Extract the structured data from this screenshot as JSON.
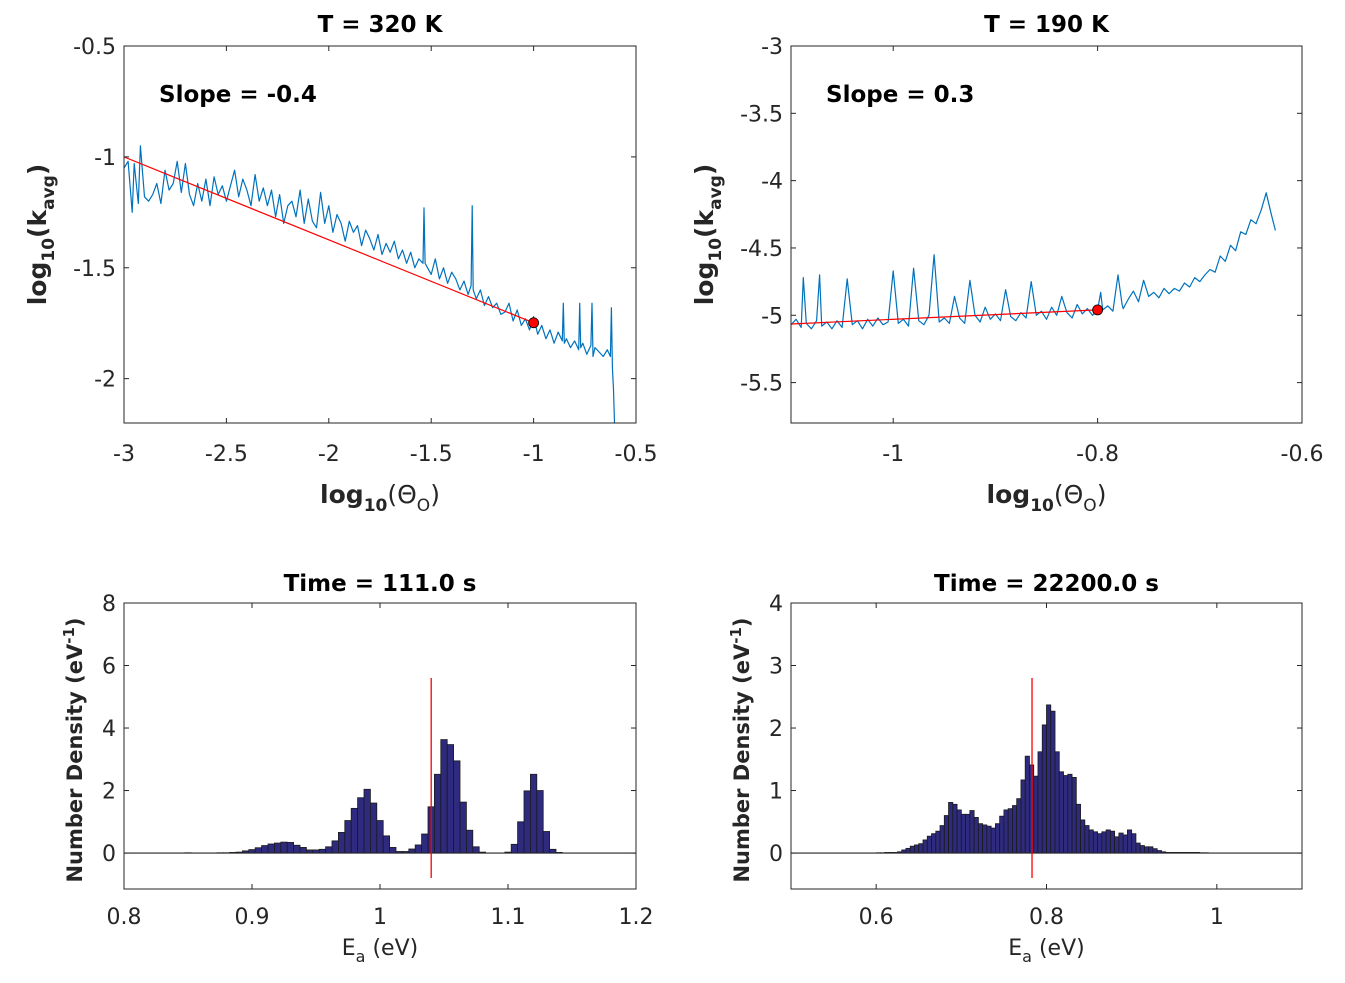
{
  "chart_data": [
    {
      "id": "top-left",
      "type": "line",
      "title": "T = 320 K",
      "xlabel": {
        "base": "log",
        "sub": "10",
        "open": "(",
        "sym": "Θ",
        "symsub": "O",
        "close": ")"
      },
      "ylabel": {
        "base": "log",
        "sub": "10",
        "open": "(k",
        "sym": "",
        "symsub": "avg",
        "close": ")"
      },
      "xlim": [
        -3,
        -0.5
      ],
      "ylim": [
        -2.2,
        -0.5
      ],
      "xticks": [
        -3,
        -2.5,
        -2,
        -1.5,
        -1,
        -0.5
      ],
      "xtick_labels": [
        "-3",
        "-2.5",
        "-2",
        "-1.5",
        "-1",
        "-0.5"
      ],
      "yticks": [
        -2,
        -1.5,
        -1,
        -0.5
      ],
      "ytick_labels": [
        "-2",
        "-1.5",
        "-1",
        "-0.5"
      ],
      "annotation": "Slope = -0.4",
      "annotation_pos": "top-left",
      "grid": false,
      "series": [
        {
          "name": "data",
          "color": "#0072BD",
          "x": [
            -3.0,
            -2.98,
            -2.96,
            -2.95,
            -2.93,
            -2.92,
            -2.9,
            -2.88,
            -2.86,
            -2.84,
            -2.82,
            -2.8,
            -2.78,
            -2.76,
            -2.74,
            -2.72,
            -2.7,
            -2.68,
            -2.66,
            -2.64,
            -2.62,
            -2.6,
            -2.58,
            -2.56,
            -2.54,
            -2.52,
            -2.5,
            -2.48,
            -2.46,
            -2.44,
            -2.42,
            -2.4,
            -2.38,
            -2.36,
            -2.34,
            -2.32,
            -2.3,
            -2.28,
            -2.26,
            -2.24,
            -2.22,
            -2.2,
            -2.18,
            -2.16,
            -2.14,
            -2.12,
            -2.1,
            -2.08,
            -2.06,
            -2.04,
            -2.02,
            -2.0,
            -1.98,
            -1.96,
            -1.94,
            -1.92,
            -1.9,
            -1.88,
            -1.86,
            -1.84,
            -1.82,
            -1.8,
            -1.78,
            -1.76,
            -1.74,
            -1.72,
            -1.7,
            -1.68,
            -1.66,
            -1.64,
            -1.62,
            -1.6,
            -1.58,
            -1.56,
            -1.54,
            -1.535,
            -1.53,
            -1.5,
            -1.48,
            -1.46,
            -1.44,
            -1.42,
            -1.4,
            -1.38,
            -1.36,
            -1.34,
            -1.32,
            -1.305,
            -1.3,
            -1.295,
            -1.28,
            -1.26,
            -1.24,
            -1.22,
            -1.2,
            -1.18,
            -1.16,
            -1.14,
            -1.12,
            -1.1,
            -1.08,
            -1.06,
            -1.04,
            -1.02,
            -1.0,
            -0.98,
            -0.96,
            -0.94,
            -0.92,
            -0.9,
            -0.88,
            -0.86,
            -0.855,
            -0.85,
            -0.84,
            -0.82,
            -0.8,
            -0.78,
            -0.775,
            -0.77,
            -0.76,
            -0.74,
            -0.72,
            -0.715,
            -0.71,
            -0.7,
            -0.68,
            -0.66,
            -0.64,
            -0.625,
            -0.62,
            -0.615,
            -0.61,
            -0.605
          ],
          "y": [
            -1.05,
            -1.02,
            -1.25,
            -1.03,
            -1.21,
            -0.95,
            -1.18,
            -1.2,
            -1.17,
            -1.12,
            -1.21,
            -1.06,
            -1.15,
            -1.12,
            -1.02,
            -1.16,
            -1.03,
            -1.17,
            -1.22,
            -1.12,
            -1.2,
            -1.1,
            -1.22,
            -1.09,
            -1.17,
            -1.13,
            -1.2,
            -1.13,
            -1.06,
            -1.18,
            -1.1,
            -1.15,
            -1.22,
            -1.08,
            -1.2,
            -1.14,
            -1.22,
            -1.15,
            -1.27,
            -1.17,
            -1.3,
            -1.22,
            -1.2,
            -1.27,
            -1.15,
            -1.3,
            -1.19,
            -1.29,
            -1.32,
            -1.16,
            -1.3,
            -1.22,
            -1.34,
            -1.26,
            -1.3,
            -1.38,
            -1.29,
            -1.34,
            -1.31,
            -1.4,
            -1.33,
            -1.37,
            -1.42,
            -1.35,
            -1.44,
            -1.39,
            -1.43,
            -1.38,
            -1.46,
            -1.42,
            -1.48,
            -1.43,
            -1.5,
            -1.46,
            -1.48,
            -1.23,
            -1.48,
            -1.53,
            -1.46,
            -1.55,
            -1.5,
            -1.57,
            -1.52,
            -1.55,
            -1.6,
            -1.56,
            -1.62,
            -1.58,
            -1.22,
            -1.6,
            -1.64,
            -1.6,
            -1.67,
            -1.63,
            -1.68,
            -1.66,
            -1.71,
            -1.7,
            -1.66,
            -1.74,
            -1.69,
            -1.76,
            -1.73,
            -1.78,
            -1.72,
            -1.8,
            -1.76,
            -1.82,
            -1.78,
            -1.84,
            -1.79,
            -1.83,
            -1.66,
            -1.84,
            -1.82,
            -1.86,
            -1.83,
            -1.87,
            -1.66,
            -1.86,
            -1.84,
            -1.89,
            -1.85,
            -1.66,
            -1.9,
            -1.86,
            -1.88,
            -1.9,
            -1.87,
            -1.9,
            -1.68,
            -1.95,
            -2.05,
            -2.2
          ]
        },
        {
          "name": "fit",
          "color": "#FF0000",
          "x": [
            -3,
            -1
          ],
          "y": [
            -1.0,
            -1.748
          ]
        }
      ],
      "markers": [
        {
          "x": -1,
          "y": -1.748,
          "color": "#FF0000"
        }
      ]
    },
    {
      "id": "top-right",
      "type": "line",
      "title": "T = 190 K",
      "xlabel": {
        "base": "log",
        "sub": "10",
        "open": "(",
        "sym": "Θ",
        "symsub": "O",
        "close": ")"
      },
      "ylabel": {
        "base": "log",
        "sub": "10",
        "open": "(k",
        "sym": "",
        "symsub": "avg",
        "close": ")"
      },
      "xlim": [
        -1.1,
        -0.6
      ],
      "ylim": [
        -5.8,
        -3
      ],
      "xticks": [
        -1,
        -0.8,
        -0.6
      ],
      "xtick_labels": [
        "-1",
        "-0.8",
        "-0.6"
      ],
      "yticks": [
        -5.5,
        -5,
        -4.5,
        -4,
        -3.5,
        -3
      ],
      "ytick_labels": [
        "-5.5",
        "-5",
        "-4.5",
        "-4",
        "-3.5",
        "-3"
      ],
      "annotation": "Slope = 0.3",
      "annotation_pos": "top-left",
      "grid": false,
      "series": [
        {
          "name": "data",
          "color": "#0072BD",
          "x": [
            -1.1,
            -1.095,
            -1.09,
            -1.088,
            -1.085,
            -1.08,
            -1.075,
            -1.072,
            -1.07,
            -1.065,
            -1.06,
            -1.055,
            -1.05,
            -1.045,
            -1.04,
            -1.035,
            -1.03,
            -1.025,
            -1.02,
            -1.015,
            -1.01,
            -1.005,
            -1.0,
            -0.995,
            -0.99,
            -0.985,
            -0.98,
            -0.975,
            -0.97,
            -0.965,
            -0.96,
            -0.955,
            -0.95,
            -0.945,
            -0.94,
            -0.935,
            -0.93,
            -0.925,
            -0.92,
            -0.915,
            -0.91,
            -0.905,
            -0.9,
            -0.895,
            -0.89,
            -0.885,
            -0.88,
            -0.875,
            -0.87,
            -0.865,
            -0.86,
            -0.855,
            -0.85,
            -0.845,
            -0.84,
            -0.835,
            -0.83,
            -0.825,
            -0.82,
            -0.815,
            -0.81,
            -0.805,
            -0.8,
            -0.797,
            -0.795,
            -0.79,
            -0.785,
            -0.78,
            -0.776,
            -0.775,
            -0.77,
            -0.765,
            -0.76,
            -0.755,
            -0.75,
            -0.745,
            -0.74,
            -0.735,
            -0.73,
            -0.725,
            -0.72,
            -0.715,
            -0.71,
            -0.705,
            -0.7,
            -0.695,
            -0.69,
            -0.685,
            -0.68,
            -0.675,
            -0.67,
            -0.665,
            -0.66,
            -0.655,
            -0.65,
            -0.645,
            -0.64,
            -0.635,
            -0.63,
            -0.626
          ],
          "y": [
            -5.07,
            -5.03,
            -5.09,
            -4.72,
            -5.06,
            -5.1,
            -5.04,
            -4.7,
            -5.08,
            -5.05,
            -5.1,
            -5.04,
            -5.09,
            -4.73,
            -5.07,
            -5.04,
            -5.1,
            -5.03,
            -5.08,
            -5.02,
            -5.07,
            -5.05,
            -4.67,
            -5.06,
            -5.03,
            -5.08,
            -4.65,
            -5.04,
            -5.07,
            -5.0,
            -4.55,
            -5.05,
            -5.02,
            -5.06,
            -4.86,
            -5.02,
            -5.06,
            -4.74,
            -5.0,
            -5.05,
            -4.94,
            -5.03,
            -4.99,
            -5.04,
            -4.81,
            -5.01,
            -5.04,
            -4.98,
            -5.02,
            -4.75,
            -5.0,
            -4.97,
            -5.03,
            -4.94,
            -5.0,
            -4.86,
            -4.98,
            -5.02,
            -4.92,
            -4.99,
            -4.95,
            -5.0,
            -4.96,
            -4.83,
            -4.96,
            -4.93,
            -4.97,
            -4.7,
            -4.92,
            -4.95,
            -4.88,
            -4.82,
            -4.9,
            -4.74,
            -4.86,
            -4.83,
            -4.87,
            -4.8,
            -4.84,
            -4.8,
            -4.82,
            -4.76,
            -4.79,
            -4.72,
            -4.75,
            -4.7,
            -4.66,
            -4.68,
            -4.56,
            -4.6,
            -4.48,
            -4.52,
            -4.38,
            -4.4,
            -4.29,
            -4.32,
            -4.22,
            -4.09,
            -4.25,
            -4.37
          ]
        },
        {
          "name": "fit",
          "color": "#FF0000",
          "x": [
            -1.1,
            -0.8
          ],
          "y": [
            -5.065,
            -4.96
          ]
        }
      ],
      "markers": [
        {
          "x": -0.8,
          "y": -4.96,
          "color": "#FF0000"
        }
      ]
    },
    {
      "id": "bottom-left",
      "type": "bar",
      "title": "Time = 111.0 s",
      "xlabel": {
        "base": "E",
        "sub": "a",
        "rest": " (eV)"
      },
      "ylabel": {
        "base": "Number Density (eV",
        "sup": "-1",
        "close": ")"
      },
      "xlim": [
        0.8,
        1.2
      ],
      "ylim": [
        -1.15,
        8
      ],
      "xticks": [
        0.8,
        0.9,
        1.0,
        1.1,
        1.2
      ],
      "xtick_labels": [
        "0.8",
        "0.9",
        "1",
        "1.1",
        "1.2"
      ],
      "yticks": [
        0,
        2,
        4,
        6,
        8
      ],
      "ytick_labels": [
        "0",
        "2",
        "4",
        "6",
        "8"
      ],
      "bin_width": 0.005,
      "bar_color": "#2E2A7E",
      "bar_edge_color": "#1a1a1a",
      "bin_centers": [
        0.85,
        0.875,
        0.88,
        0.885,
        0.89,
        0.895,
        0.9,
        0.905,
        0.91,
        0.915,
        0.92,
        0.925,
        0.93,
        0.935,
        0.94,
        0.945,
        0.95,
        0.955,
        0.96,
        0.965,
        0.97,
        0.975,
        0.98,
        0.985,
        0.99,
        0.995,
        1.0,
        1.005,
        1.01,
        1.015,
        1.02,
        1.025,
        1.03,
        1.035,
        1.04,
        1.045,
        1.05,
        1.055,
        1.06,
        1.065,
        1.07,
        1.075,
        1.08,
        1.1,
        1.105,
        1.11,
        1.115,
        1.12,
        1.125,
        1.13,
        1.135,
        1.14
      ],
      "values": [
        0.01,
        0.01,
        0.01,
        0.02,
        0.03,
        0.07,
        0.11,
        0.17,
        0.24,
        0.29,
        0.32,
        0.35,
        0.34,
        0.25,
        0.18,
        0.1,
        0.1,
        0.12,
        0.2,
        0.39,
        0.66,
        1.04,
        1.43,
        1.77,
        2.04,
        1.6,
        1.04,
        0.55,
        0.18,
        0.05,
        0.05,
        0.13,
        0.26,
        0.61,
        1.48,
        2.52,
        3.63,
        3.47,
        2.95,
        1.63,
        0.73,
        0.2,
        0.03,
        0.03,
        0.28,
        1.0,
        1.99,
        2.52,
        2.0,
        0.69,
        0.12,
        0.02
      ],
      "vline": {
        "x": 1.04,
        "y": [
          -0.8,
          5.6
        ],
        "color": "#FF0000"
      },
      "baseline": 0
    },
    {
      "id": "bottom-right",
      "type": "bar",
      "title": "Time = 22200.0 s",
      "xlabel": {
        "base": "E",
        "sub": "a",
        "rest": " (eV)"
      },
      "ylabel": {
        "base": "Number Density (eV",
        "sup": "-1",
        "close": ")"
      },
      "xlim": [
        0.5,
        1.1
      ],
      "ylim": [
        -0.575,
        4
      ],
      "xticks": [
        0.6,
        0.8,
        1.0
      ],
      "xtick_labels": [
        "0.6",
        "0.8",
        "1"
      ],
      "yticks": [
        0,
        1,
        2,
        3,
        4
      ],
      "ytick_labels": [
        "0",
        "1",
        "2",
        "3",
        "4"
      ],
      "bin_width": 0.005,
      "bar_color": "#2E2A7E",
      "bar_edge_color": "#1a1a1a",
      "bin_centers": [
        0.6025,
        0.6075,
        0.6125,
        0.6175,
        0.6225,
        0.6275,
        0.6325,
        0.6375,
        0.6425,
        0.6475,
        0.6525,
        0.6575,
        0.6625,
        0.6675,
        0.6725,
        0.6775,
        0.6825,
        0.6875,
        0.6925,
        0.6975,
        0.7025,
        0.7075,
        0.7125,
        0.7175,
        0.7225,
        0.7275,
        0.7325,
        0.7375,
        0.7425,
        0.7475,
        0.7525,
        0.7575,
        0.7625,
        0.7675,
        0.7725,
        0.7775,
        0.7825,
        0.7875,
        0.7925,
        0.7975,
        0.8025,
        0.8075,
        0.8125,
        0.8175,
        0.8225,
        0.8275,
        0.8325,
        0.8375,
        0.8425,
        0.8475,
        0.8525,
        0.8575,
        0.8625,
        0.8675,
        0.8725,
        0.8775,
        0.8825,
        0.8875,
        0.8925,
        0.8975,
        0.9025,
        0.9075,
        0.9125,
        0.9175,
        0.9225,
        0.9275,
        0.9325,
        0.9375,
        0.9425,
        0.9475,
        0.9525,
        0.9575,
        0.9625,
        0.9675,
        0.9725,
        0.9775,
        0.9825,
        0.9875
      ],
      "values": [
        0.005,
        0.005,
        0.01,
        0.01,
        0.01,
        0.02,
        0.05,
        0.075,
        0.11,
        0.13,
        0.15,
        0.21,
        0.27,
        0.31,
        0.35,
        0.44,
        0.6,
        0.81,
        0.78,
        0.69,
        0.62,
        0.62,
        0.68,
        0.57,
        0.47,
        0.45,
        0.43,
        0.4,
        0.47,
        0.59,
        0.69,
        0.71,
        0.76,
        0.87,
        1.17,
        1.55,
        1.41,
        1.23,
        1.62,
        2.05,
        2.37,
        2.27,
        1.62,
        1.3,
        1.24,
        1.26,
        1.21,
        0.78,
        0.53,
        0.44,
        0.37,
        0.34,
        0.31,
        0.34,
        0.37,
        0.35,
        0.26,
        0.32,
        0.29,
        0.37,
        0.31,
        0.16,
        0.12,
        0.1,
        0.1,
        0.07,
        0.04,
        0.02,
        0.01,
        0.01,
        0.01,
        0.01,
        0.01,
        0.01,
        0.01,
        0.01,
        0.005,
        0.005
      ],
      "vline": {
        "x": 0.783,
        "y": [
          -0.4,
          2.8
        ],
        "color": "#FF0000"
      },
      "baseline": 0
    }
  ]
}
